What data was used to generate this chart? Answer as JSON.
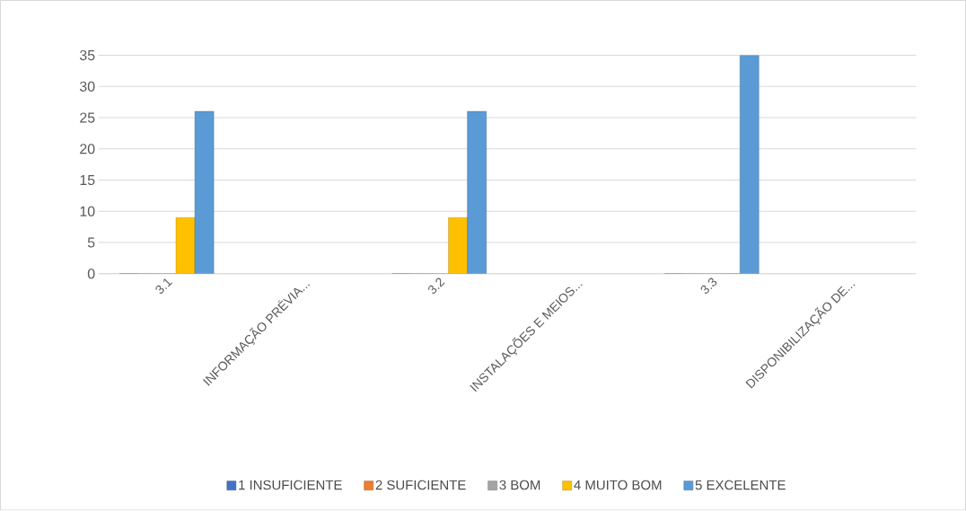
{
  "chart_data": {
    "type": "bar",
    "categories": [
      "3.1",
      "INFORMAÇÃO PRÉVIA...",
      "3.2",
      "INSTALAÇÕES E MEIOS...",
      "3.3",
      "DISPONIBILIZAÇÃO DE..."
    ],
    "series": [
      {
        "name": "1 INSUFICIENTE",
        "color": "#4472c4",
        "values": [
          0,
          null,
          0,
          null,
          0,
          null
        ]
      },
      {
        "name": "2 SUFICIENTE",
        "color": "#ed7d31",
        "values": [
          0,
          null,
          0,
          null,
          0,
          null
        ]
      },
      {
        "name": "3 BOM",
        "color": "#a5a5a5",
        "values": [
          0,
          null,
          0,
          null,
          0,
          null
        ]
      },
      {
        "name": "4 MUITO BOM",
        "color": "#ffc000",
        "values": [
          9,
          null,
          9,
          null,
          0,
          null
        ]
      },
      {
        "name": "5 EXCELENTE",
        "color": "#5b9bd5",
        "values": [
          26,
          null,
          26,
          null,
          35,
          null
        ]
      }
    ],
    "ylim": [
      0,
      35
    ],
    "yticks": [
      0,
      5,
      10,
      15,
      20,
      25,
      30,
      35
    ],
    "grid": "y",
    "legend": "bottom"
  }
}
